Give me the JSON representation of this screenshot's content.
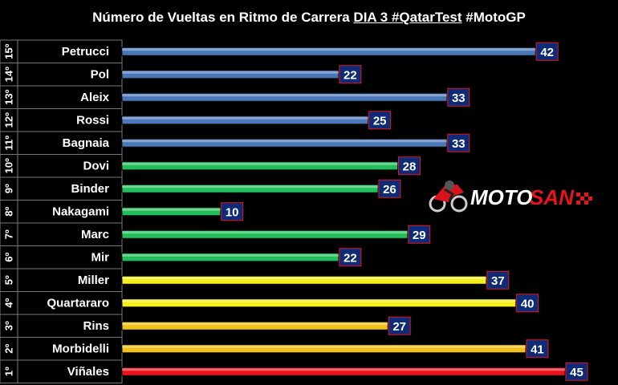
{
  "chart_data": {
    "type": "bar",
    "orientation": "horizontal",
    "title_prefix": "Número de Vueltas en Ritmo de Carrera ",
    "title_underlined": "DIA 3 #QatarTest",
    "title_suffix": " #MotoGP",
    "positions": [
      "15º",
      "14º",
      "13º",
      "12º",
      "11º",
      "10º",
      "9º",
      "8º",
      "7º",
      "6º",
      "5º",
      "4º",
      "3º",
      "2º",
      "1º"
    ],
    "categories": [
      "Petrucci",
      "Pol",
      "Aleix",
      "Rossi",
      "Bagnaia",
      "Dovi",
      "Binder",
      "Nakagami",
      "Marc",
      "Mir",
      "Miller",
      "Quartararo",
      "Rins",
      "Morbidelli",
      "Viñales"
    ],
    "values": [
      42,
      22,
      33,
      25,
      33,
      28,
      26,
      10,
      29,
      22,
      37,
      40,
      27,
      41,
      45
    ],
    "bar_colors": [
      "#4a77b8",
      "#4a77b8",
      "#4a77b8",
      "#4a77b8",
      "#4a77b8",
      "#22c05a",
      "#22c05a",
      "#22c05a",
      "#22c05a",
      "#22c05a",
      "#f2ef1a",
      "#f2ef1a",
      "#f2c01a",
      "#f2c01a",
      "#e8141a"
    ],
    "label_box_color": "#0e2b78",
    "xlim": [
      0,
      45
    ]
  },
  "logo": {
    "text_moto": "MOTO",
    "text_san": "SAN"
  }
}
